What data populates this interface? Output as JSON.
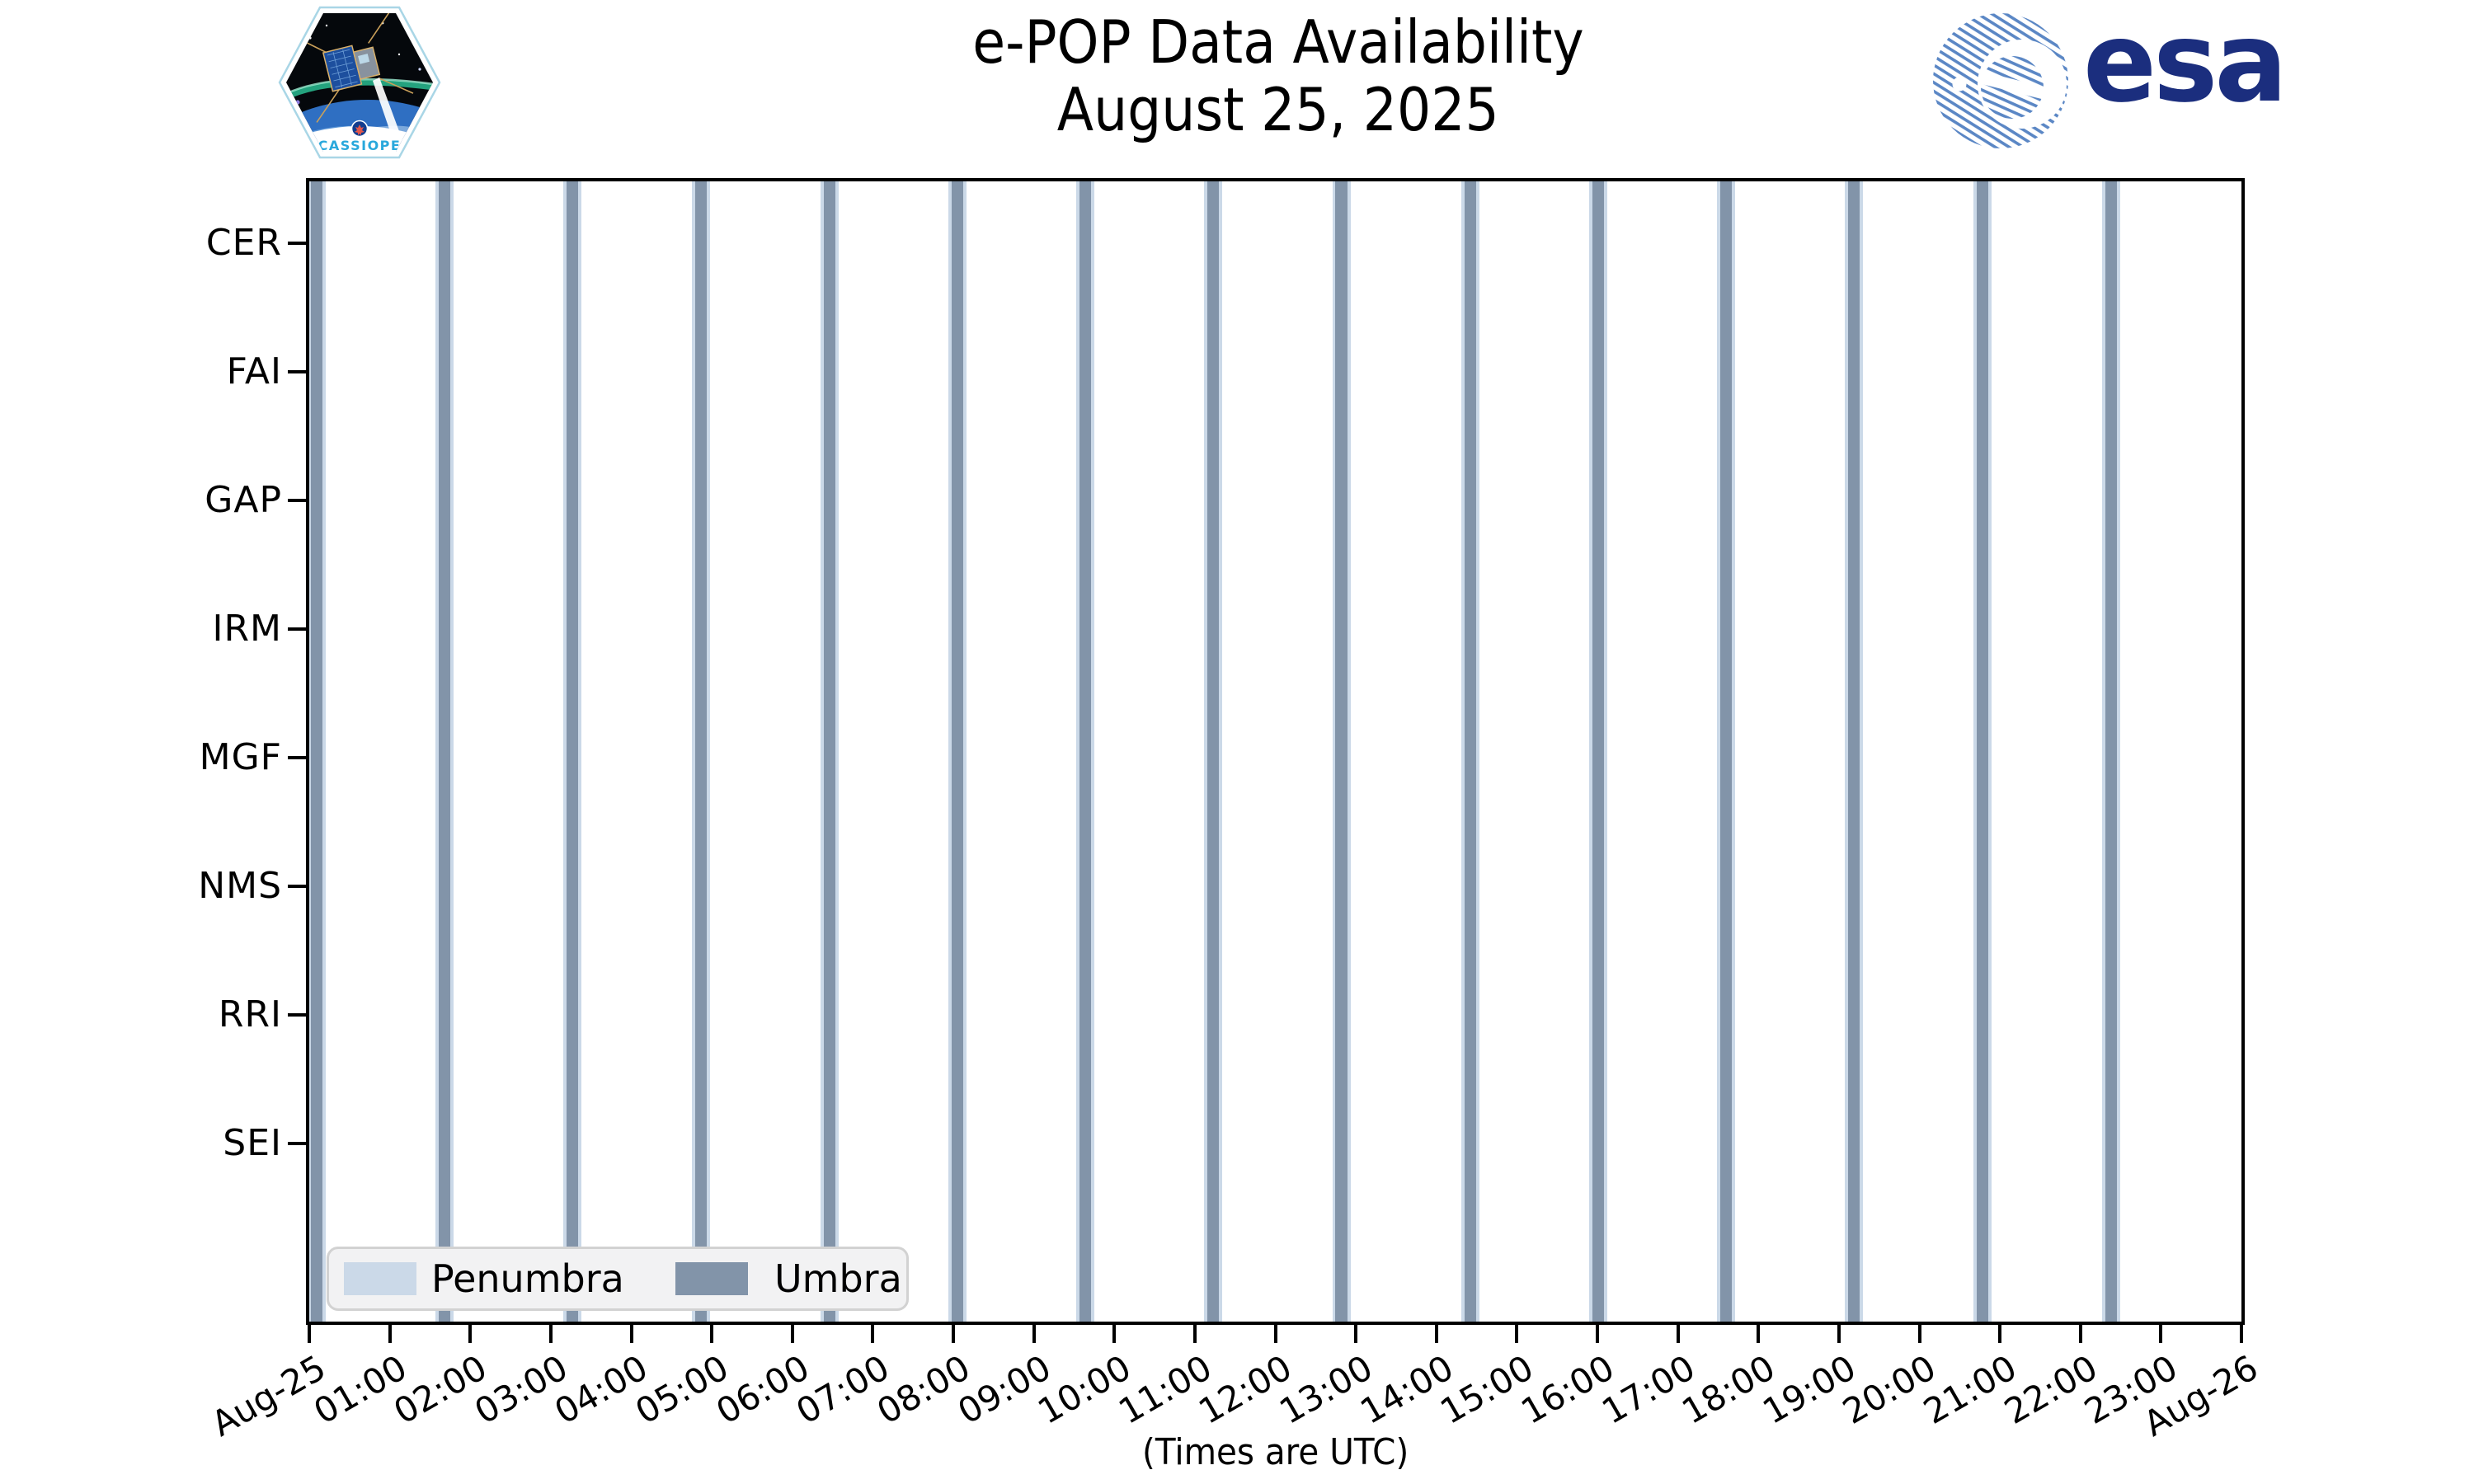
{
  "logos": {
    "cassiope_text": "CASSIOPE",
    "esa_text": "esa",
    "esa_blue": "#1B2E7E",
    "esa_stripe_blue": "#5B87C5",
    "cassiope_blue": "#29A8DC"
  },
  "chart_data": {
    "type": "timeline_bars",
    "title": "e-POP Data Availability",
    "subtitle": "August 25, 2025",
    "x_axis_note": "(Times are UTC)",
    "x_range_hours": [
      0,
      24
    ],
    "x_tick_labels": [
      "Aug-25",
      "01:00",
      "02:00",
      "03:00",
      "04:00",
      "05:00",
      "06:00",
      "07:00",
      "08:00",
      "09:00",
      "10:00",
      "11:00",
      "12:00",
      "13:00",
      "14:00",
      "15:00",
      "16:00",
      "17:00",
      "18:00",
      "19:00",
      "20:00",
      "21:00",
      "22:00",
      "23:00",
      "Aug-26"
    ],
    "y_categories": [
      "CER",
      "FAI",
      "GAP",
      "IRM",
      "MGF",
      "NMS",
      "RRI",
      "SEI"
    ],
    "grid": false,
    "plot_background": "#ffffff",
    "legend_position": "lower left",
    "legend": [
      {
        "label": "Penumbra",
        "color": "#CBD9E8"
      },
      {
        "label": "Umbra",
        "color": "#8294A9"
      }
    ],
    "umbra_duration_hours": 0.145,
    "penumbra_extra_hours_each_side": 0.04,
    "umbra_center_hours": [
      0.09,
      1.68,
      3.27,
      4.87,
      6.46,
      8.05,
      9.64,
      11.23,
      12.82,
      14.42,
      16.01,
      17.6,
      19.19,
      20.78,
      22.38
    ],
    "umbra_center_times_utc": [
      "00:05",
      "01:41",
      "03:16",
      "04:52",
      "06:28",
      "08:03",
      "09:38",
      "11:14",
      "12:49",
      "14:25",
      "16:01",
      "17:36",
      "19:11",
      "20:47",
      "22:23"
    ]
  }
}
